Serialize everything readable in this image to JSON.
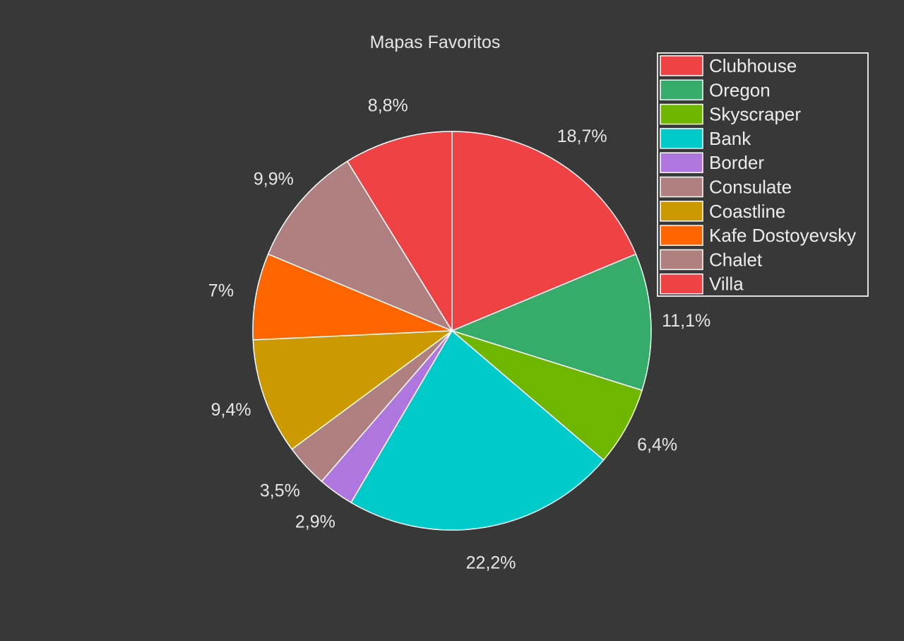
{
  "chart_data": {
    "type": "pie",
    "title": "Mapas Favoritos",
    "slices": [
      {
        "name": "Clubhouse",
        "value": 18.7,
        "label": "18,7%",
        "color": "#ef4245"
      },
      {
        "name": "Oregon",
        "value": 11.1,
        "label": "11,1%",
        "color": "#36ab6a"
      },
      {
        "name": "Skyscraper",
        "value": 6.4,
        "label": "6,4%",
        "color": "#6fb600"
      },
      {
        "name": "Bank",
        "value": 22.2,
        "label": "22,2%",
        "color": "#00cbcb"
      },
      {
        "name": "Border",
        "value": 2.9,
        "label": "2,9%",
        "color": "#b076e0"
      },
      {
        "name": "Consulate",
        "value": 3.5,
        "label": "3,5%",
        "color": "#b08080"
      },
      {
        "name": "Coastline",
        "value": 9.4,
        "label": "9,4%",
        "color": "#cc9a00"
      },
      {
        "name": "Kafe Dostoyevsky",
        "value": 7.0,
        "label": "7%",
        "color": "#fc6500"
      },
      {
        "name": "Chalet",
        "value": 9.9,
        "label": "9,9%",
        "color": "#b08080"
      },
      {
        "name": "Villa",
        "value": 8.8,
        "label": "8,8%",
        "color": "#ef4245"
      }
    ],
    "start_angle": "top",
    "direction": "clockwise",
    "legend_position": "top-right",
    "background": "#383838",
    "border_color": "#ffffff"
  }
}
